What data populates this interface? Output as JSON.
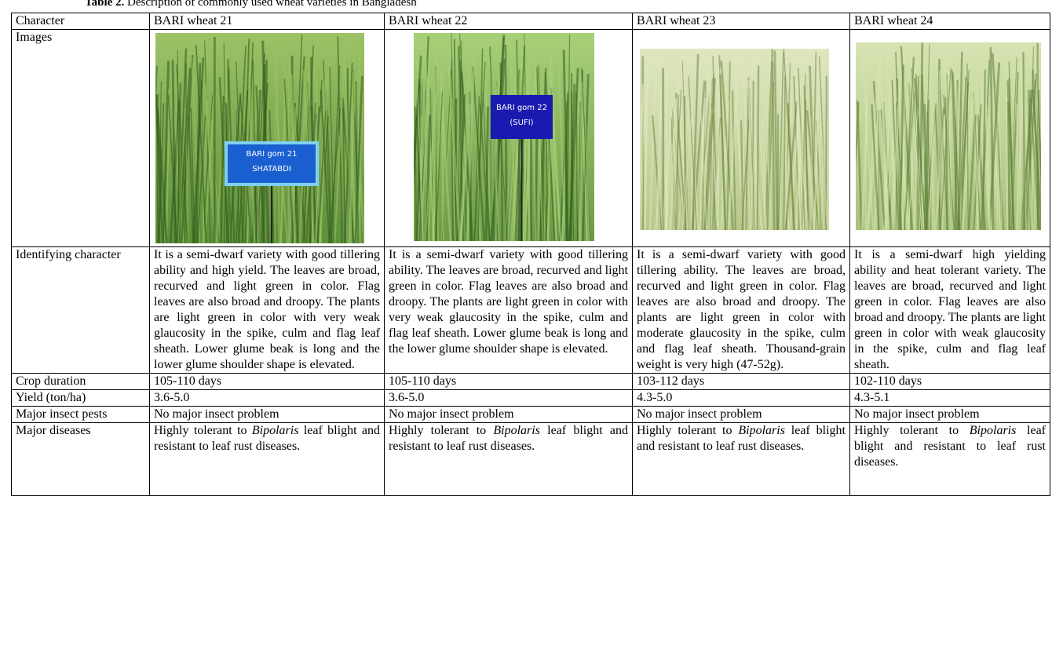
{
  "caption": {
    "label": "Table 2.",
    "text": " Description of commonly used wheat varieties in Bangladesh"
  },
  "table": {
    "header": [
      "Character",
      "BARI wheat 21",
      "BARI wheat 22",
      "BARI wheat 23",
      "BARI wheat 24"
    ],
    "images_label": "Images",
    "image_signs": [
      [
        "BARI gom 21",
        "SHATABDI"
      ],
      [
        "BARI gom 22",
        "(SUFI)"
      ]
    ],
    "rows": [
      [
        "Identifying character",
        "It is a semi-dwarf variety with good tillering ability and high yield. The leaves are broad, recurved and light green in color. Flag leaves are also broad and droopy. The plants are light green in color with very weak glaucosity in the spike, culm and flag leaf sheath. Lower glume beak is long and the lower glume shoulder shape is elevated.",
        "It is a semi-dwarf variety with good tillering ability. The leaves are broad, recurved and light green in color. Flag leaves are also broad and droopy. The plants are light green in color with very weak glaucosity in the spike, culm and flag leaf sheath. Lower glume beak is long and the lower glume shoulder shape is elevated.",
        "It is a semi-dwarf variety with good tillering ability. The leaves are broad, recurved and light green in color. Flag leaves are also broad and droopy. The plants are light green in color with moderate glaucosity in the spike, culm and flag leaf sheath. Thousand-grain weight is very high (47-52g).",
        "It is a semi-dwarf high yielding ability and heat tolerant variety. The leaves are broad, recurved and light green in color. Flag leaves are also broad and droopy. The plants are light green in color with weak glaucosity in the spike, culm and flag leaf sheath."
      ],
      [
        "Crop duration",
        "105-110 days",
        "105-110 days",
        "103-112 days",
        "102-110 days"
      ],
      [
        "Yield (ton/ha)",
        "3.6-5.0",
        "3.6-5.0",
        "4.3-5.0",
        "4.3-5.1"
      ],
      [
        "Major insect pests",
        "No major insect problem",
        "No major insect problem",
        "No major insect problem",
        "No major insect problem"
      ]
    ],
    "diseases": {
      "label": "Major diseases",
      "cells": [
        {
          "pre": "Highly tolerant to ",
          "em": "Bipolaris",
          "post": " leaf blight and resistant to leaf rust diseases."
        },
        {
          "pre": "Highly tolerant to ",
          "em": "Bipolaris",
          "post": " leaf blight and resistant to leaf rust diseases."
        },
        {
          "pre": "Highly tolerant to ",
          "em": "Bipolaris",
          "post": " leaf blight and resistant to leaf rust diseases."
        },
        {
          "pre": "Highly tolerant to ",
          "em": "Bipolaris",
          "post": " leaf blight and resistant to leaf rust diseases."
        }
      ]
    }
  }
}
